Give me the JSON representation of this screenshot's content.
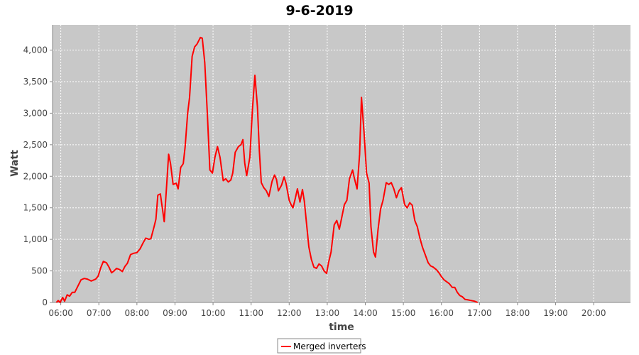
{
  "chart_data": {
    "type": "line",
    "title": "9-6-2019",
    "xlabel": "time",
    "ylabel": "Watt",
    "xlim": [
      "05:47",
      "20:58"
    ],
    "ylim": [
      0,
      4400
    ],
    "xticks": [
      "06:00",
      "07:00",
      "08:00",
      "09:00",
      "10:00",
      "11:00",
      "12:00",
      "13:00",
      "14:00",
      "15:00",
      "16:00",
      "17:00",
      "18:00",
      "19:00",
      "20:00"
    ],
    "yticks": [
      0,
      500,
      1000,
      1500,
      2000,
      2500,
      3000,
      3500,
      4000
    ],
    "ytick_labels": [
      "0",
      "500",
      "1,000",
      "1,500",
      "2,000",
      "2,500",
      "3,000",
      "3,500",
      "4,000"
    ],
    "grid": true,
    "legend_position": "bottom-center",
    "colors": {
      "series": "#ff0000",
      "plot_background": "#c8c8c8",
      "grid": "#ffffff"
    },
    "series": [
      {
        "name": "Merged inverters",
        "points": [
          [
            "05:53",
            0
          ],
          [
            "05:56",
            30
          ],
          [
            "05:59",
            0
          ],
          [
            "06:03",
            80
          ],
          [
            "06:06",
            20
          ],
          [
            "06:10",
            120
          ],
          [
            "06:14",
            100
          ],
          [
            "06:18",
            160
          ],
          [
            "06:22",
            160
          ],
          [
            "06:27",
            260
          ],
          [
            "06:32",
            360
          ],
          [
            "06:37",
            380
          ],
          [
            "06:42",
            370
          ],
          [
            "06:48",
            340
          ],
          [
            "06:55",
            370
          ],
          [
            "06:59",
            420
          ],
          [
            "07:03",
            550
          ],
          [
            "07:07",
            650
          ],
          [
            "07:12",
            630
          ],
          [
            "07:16",
            560
          ],
          [
            "07:20",
            470
          ],
          [
            "07:24",
            500
          ],
          [
            "07:28",
            540
          ],
          [
            "07:33",
            520
          ],
          [
            "07:37",
            490
          ],
          [
            "07:41",
            570
          ],
          [
            "07:45",
            620
          ],
          [
            "07:50",
            760
          ],
          [
            "07:55",
            780
          ],
          [
            "08:00",
            790
          ],
          [
            "08:05",
            850
          ],
          [
            "08:10",
            950
          ],
          [
            "08:14",
            1020
          ],
          [
            "08:19",
            1000
          ],
          [
            "08:22",
            1010
          ],
          [
            "08:27",
            1200
          ],
          [
            "08:30",
            1320
          ],
          [
            "08:33",
            1700
          ],
          [
            "08:37",
            1720
          ],
          [
            "08:40",
            1500
          ],
          [
            "08:43",
            1280
          ],
          [
            "08:47",
            1870
          ],
          [
            "08:50",
            2350
          ],
          [
            "08:53",
            2200
          ],
          [
            "08:57",
            1870
          ],
          [
            "09:02",
            1890
          ],
          [
            "09:05",
            1800
          ],
          [
            "09:09",
            2140
          ],
          [
            "09:13",
            2200
          ],
          [
            "09:16",
            2460
          ],
          [
            "09:20",
            3000
          ],
          [
            "09:23",
            3250
          ],
          [
            "09:27",
            3900
          ],
          [
            "09:31",
            4050
          ],
          [
            "09:35",
            4100
          ],
          [
            "09:40",
            4200
          ],
          [
            "09:43",
            4190
          ],
          [
            "09:47",
            3800
          ],
          [
            "09:51",
            3000
          ],
          [
            "09:55",
            2100
          ],
          [
            "09:59",
            2050
          ],
          [
            "10:03",
            2300
          ],
          [
            "10:07",
            2470
          ],
          [
            "10:11",
            2300
          ],
          [
            "10:16",
            1930
          ],
          [
            "10:20",
            1960
          ],
          [
            "10:24",
            1910
          ],
          [
            "10:28",
            1940
          ],
          [
            "10:31",
            2050
          ],
          [
            "10:35",
            2380
          ],
          [
            "10:40",
            2470
          ],
          [
            "10:44",
            2500
          ],
          [
            "10:47",
            2580
          ],
          [
            "10:50",
            2210
          ],
          [
            "10:53",
            2010
          ],
          [
            "10:58",
            2300
          ],
          [
            "11:02",
            3050
          ],
          [
            "11:06",
            3600
          ],
          [
            "11:10",
            3100
          ],
          [
            "11:13",
            2400
          ],
          [
            "11:16",
            1900
          ],
          [
            "11:20",
            1820
          ],
          [
            "11:24",
            1770
          ],
          [
            "11:28",
            1680
          ],
          [
            "11:33",
            1920
          ],
          [
            "11:37",
            2020
          ],
          [
            "11:40",
            1950
          ],
          [
            "11:43",
            1770
          ],
          [
            "11:48",
            1860
          ],
          [
            "11:52",
            1990
          ],
          [
            "11:55",
            1890
          ],
          [
            "12:00",
            1620
          ],
          [
            "12:03",
            1550
          ],
          [
            "12:06",
            1500
          ],
          [
            "12:09",
            1620
          ],
          [
            "12:13",
            1800
          ],
          [
            "12:17",
            1590
          ],
          [
            "12:21",
            1790
          ],
          [
            "12:24",
            1600
          ],
          [
            "12:27",
            1290
          ],
          [
            "12:31",
            880
          ],
          [
            "12:35",
            680
          ],
          [
            "12:39",
            560
          ],
          [
            "12:43",
            540
          ],
          [
            "12:47",
            610
          ],
          [
            "12:51",
            580
          ],
          [
            "12:55",
            500
          ],
          [
            "12:59",
            460
          ],
          [
            "13:02",
            630
          ],
          [
            "13:06",
            800
          ],
          [
            "13:11",
            1230
          ],
          [
            "13:15",
            1300
          ],
          [
            "13:19",
            1160
          ],
          [
            "13:23",
            1350
          ],
          [
            "13:27",
            1550
          ],
          [
            "13:31",
            1620
          ],
          [
            "13:35",
            1960
          ],
          [
            "13:40",
            2100
          ],
          [
            "13:43",
            1960
          ],
          [
            "13:47",
            1800
          ],
          [
            "13:51",
            2350
          ],
          [
            "13:54",
            3250
          ],
          [
            "13:58",
            2700
          ],
          [
            "14:02",
            2050
          ],
          [
            "14:06",
            1890
          ],
          [
            "14:09",
            1200
          ],
          [
            "14:13",
            800
          ],
          [
            "14:16",
            720
          ],
          [
            "14:20",
            1150
          ],
          [
            "14:24",
            1480
          ],
          [
            "14:28",
            1620
          ],
          [
            "14:33",
            1900
          ],
          [
            "14:37",
            1870
          ],
          [
            "14:41",
            1900
          ],
          [
            "14:45",
            1800
          ],
          [
            "14:49",
            1660
          ],
          [
            "14:53",
            1770
          ],
          [
            "14:57",
            1820
          ],
          [
            "15:02",
            1550
          ],
          [
            "15:06",
            1500
          ],
          [
            "15:10",
            1580
          ],
          [
            "15:14",
            1540
          ],
          [
            "15:18",
            1300
          ],
          [
            "15:22",
            1200
          ],
          [
            "15:26",
            1020
          ],
          [
            "15:30",
            880
          ],
          [
            "15:34",
            770
          ],
          [
            "15:39",
            630
          ],
          [
            "15:43",
            580
          ],
          [
            "15:47",
            560
          ],
          [
            "15:52",
            520
          ],
          [
            "15:56",
            470
          ],
          [
            "16:00",
            410
          ],
          [
            "16:04",
            360
          ],
          [
            "16:08",
            330
          ],
          [
            "16:12",
            300
          ],
          [
            "16:17",
            240
          ],
          [
            "16:21",
            240
          ],
          [
            "16:25",
            160
          ],
          [
            "16:29",
            110
          ],
          [
            "16:33",
            90
          ],
          [
            "16:37",
            50
          ],
          [
            "16:42",
            40
          ],
          [
            "16:47",
            30
          ],
          [
            "16:52",
            20
          ],
          [
            "16:57",
            0
          ]
        ]
      }
    ]
  }
}
